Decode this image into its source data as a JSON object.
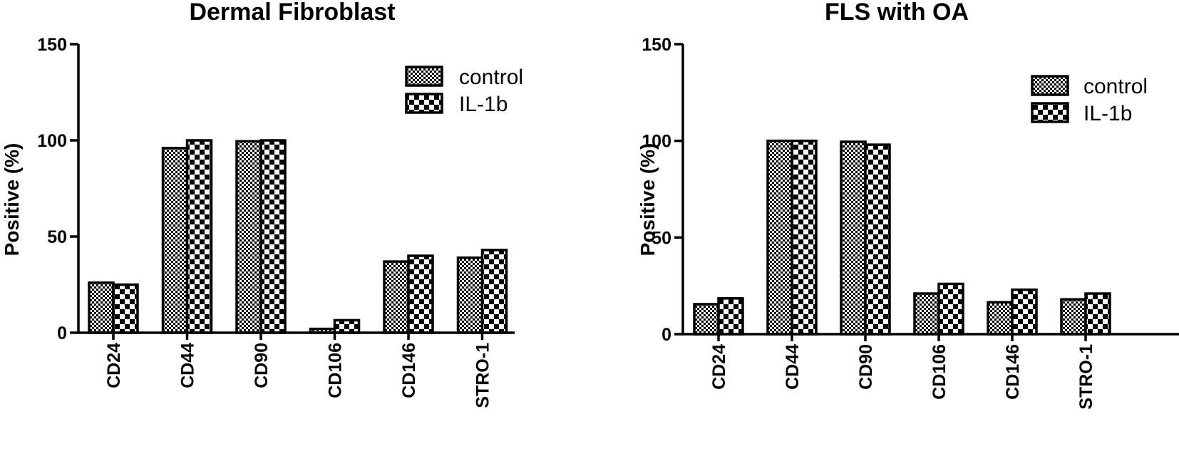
{
  "chart_data": [
    {
      "type": "bar",
      "title": "Dermal Fibroblast",
      "ylabel": "Positive (%)",
      "xlabel": "",
      "ylim": [
        0,
        150
      ],
      "yticks": [
        0,
        50,
        100,
        150
      ],
      "categories": [
        "CD24",
        "CD44",
        "CD90",
        "CD106",
        "CD146",
        "STRO-1"
      ],
      "series": [
        {
          "name": "control",
          "values": [
            26,
            96,
            99.5,
            2,
            37,
            39
          ]
        },
        {
          "name": "IL-1b",
          "values": [
            25,
            100,
            100,
            6.5,
            40,
            43
          ]
        }
      ],
      "legend_position": "top-right",
      "grid": false
    },
    {
      "type": "bar",
      "title": "FLS with OA",
      "ylabel": "Positive (%)",
      "xlabel": "",
      "ylim": [
        0,
        150
      ],
      "yticks": [
        0,
        50,
        100,
        150
      ],
      "categories": [
        "CD24",
        "CD44",
        "CD90",
        "CD106",
        "CD146",
        "STRO-1"
      ],
      "series": [
        {
          "name": "control",
          "values": [
            15.5,
            100,
            99.5,
            21,
            16.5,
            18
          ]
        },
        {
          "name": "IL-1b",
          "values": [
            18.5,
            100,
            98,
            26,
            23,
            21
          ]
        }
      ],
      "legend_position": "top-right",
      "grid": false
    }
  ],
  "colors": {
    "axis": "#000000",
    "pattern_ink": "#000000",
    "background": "#ffffff"
  }
}
